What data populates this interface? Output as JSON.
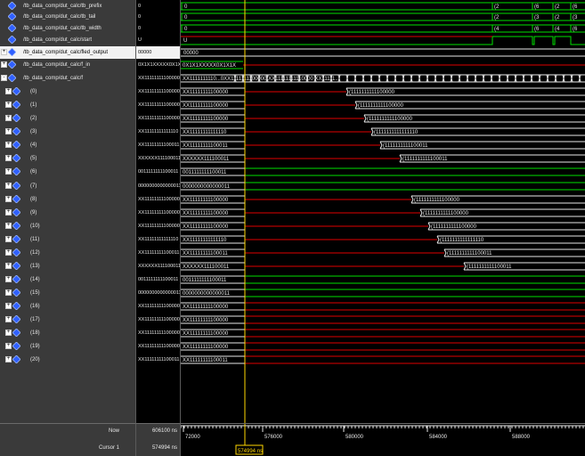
{
  "colors": {
    "name_panel_bg": "#3a3a3a",
    "wave_bg": "#000000",
    "wave_green": "#00e000",
    "wave_red": "#e00000",
    "wave_white": "#e8e8e8",
    "cursor_yellow": "#ffd700",
    "icon_blue": "#3060ff"
  },
  "signals": [
    {
      "name": "/tb_data_comp/dut_calc/tb_prefix",
      "value": "0",
      "expander": "",
      "icon": "diamond-icon"
    },
    {
      "name": "/tb_data_comp/dut_calc/tb_tail",
      "value": "0",
      "expander": "",
      "icon": "diamond-icon"
    },
    {
      "name": "/tb_data_comp/dut_calc/tb_width",
      "value": "0",
      "expander": "",
      "icon": "diamond-icon"
    },
    {
      "name": "/tb_data_comp/dut_calc/start",
      "value": "U",
      "expander": "",
      "icon": "diamond-icon"
    },
    {
      "name": "/tb_data_comp/dut_calc/fled_output",
      "value": "00000",
      "expander": "+",
      "icon": "diamond-icon",
      "selected": true
    },
    {
      "name": "/tb_data_comp/dut_calc/f_in",
      "value": "0X1X1XXXXX0X1X1",
      "expander": "+",
      "icon": "diamond-icon"
    },
    {
      "name": "/tb_data_comp/dut_calc/f",
      "value": "XX11111111100000",
      "expander": "-",
      "icon": "diamond-icon"
    },
    {
      "name": "(0)",
      "value": "XX11111111100000",
      "expander": "+",
      "icon": "diamond-icon"
    },
    {
      "name": "(1)",
      "value": "XX11111111100000",
      "expander": "+",
      "icon": "diamond-icon"
    },
    {
      "name": "(2)",
      "value": "XX11111111100000",
      "expander": "+",
      "icon": "diamond-icon"
    },
    {
      "name": "(3)",
      "value": "XX11111111111110",
      "expander": "+",
      "icon": "diamond-icon"
    },
    {
      "name": "(4)",
      "value": "XX11111111100011",
      "expander": "+",
      "icon": "diamond-icon"
    },
    {
      "name": "(5)",
      "value": "XXXXXX111100011",
      "expander": "+",
      "icon": "diamond-icon"
    },
    {
      "name": "(6)",
      "value": "0011111111100011",
      "expander": "+",
      "icon": "diamond-icon"
    },
    {
      "name": "(7)",
      "value": "0000000000000011",
      "expander": "+",
      "icon": "diamond-icon"
    },
    {
      "name": "(8)",
      "value": "XX11111111100000",
      "expander": "+",
      "icon": "diamond-icon"
    },
    {
      "name": "(9)",
      "value": "XX11111111100000",
      "expander": "+",
      "icon": "diamond-icon"
    },
    {
      "name": "(10)",
      "value": "XX11111111100000",
      "expander": "+",
      "icon": "diamond-icon"
    },
    {
      "name": "(11)",
      "value": "XX11111111111110",
      "expander": "+",
      "icon": "diamond-icon"
    },
    {
      "name": "(12)",
      "value": "XX11111111100011",
      "expander": "+",
      "icon": "diamond-icon"
    },
    {
      "name": "(13)",
      "value": "XXXXXX111100011",
      "expander": "+",
      "icon": "diamond-icon"
    },
    {
      "name": "(14)",
      "value": "0011111111100011",
      "expander": "+",
      "icon": "diamond-icon"
    },
    {
      "name": "(15)",
      "value": "0000000000000011",
      "expander": "+",
      "icon": "diamond-icon"
    },
    {
      "name": "(16)",
      "value": "XX11111111100000",
      "expander": "+",
      "icon": "diamond-icon"
    },
    {
      "name": "(17)",
      "value": "XX11111111100000",
      "expander": "+",
      "icon": "diamond-icon"
    },
    {
      "name": "(18)",
      "value": "XX11111111100000",
      "expander": "+",
      "icon": "diamond-icon"
    },
    {
      "name": "(19)",
      "value": "XX11111111100000",
      "expander": "+",
      "icon": "diamond-icon"
    },
    {
      "name": "(20)",
      "value": "XX11111111100011",
      "expander": "+",
      "icon": "diamond-icon"
    }
  ],
  "wave_labels": {
    "r0": [
      "(2",
      "(6",
      "(2",
      "(6"
    ],
    "r1": [
      "(2",
      "(3",
      "(2",
      "(3"
    ],
    "r2": [
      "(4",
      "(6",
      "(4",
      "(6"
    ],
    "r4": "00000",
    "r5": "0X1X1XXXXX0X1X1X",
    "r6": "XX1111111110...0XX1111111100000 XX11111111110000 XX11111...",
    "r6_tail": "(1111111111100000 1111111111110000 1111111111...",
    "r7": "XX11111111100000",
    "r8": "XX11111111100000",
    "r9": "XX11111111100000",
    "r10": "XX11111111111110",
    "r11": "XX11111111100011",
    "r12": "XXXXXX111100011",
    "r13": "0011111111100011",
    "r14": "0000000000000011",
    "r15": "XX11111111100000",
    "r16": "XX11111111100000",
    "r17": "XX11111111100000",
    "r18": "XX11111111111110",
    "r19": "XX11111111100011",
    "r20": "XXXXXX111100011",
    "r21": "0011111111100011",
    "r22": "0000000000000011",
    "r23": "XX11111111100000",
    "r24": "XX11111111100000",
    "r25": "XX11111111100000",
    "r26": "XX11111111100000",
    "r27": "XX11111111100011",
    "d7": "(1111111111100000",
    "d8": "(1111111111100000",
    "d9": "(1111111111100000",
    "d10": "(1111111111111110",
    "d11": "(1111111111100011",
    "d12": "(1111111111100011",
    "d15": "(1111111111100000",
    "d16": "(1111111111100000",
    "d17": "(1111111111100000",
    "d18": "(1111111111111110",
    "d19": "(1111111111100011",
    "d20": "(1111111111100011"
  },
  "bottom": {
    "now_label": "Now",
    "now_value": "606100 ns",
    "cursor_label": "Cursor 1",
    "cursor_value": "574994 ns",
    "cursor_flag": "574994 ns",
    "ruler_ticks": [
      "72000",
      "576000",
      "580000",
      "584000",
      "588000"
    ]
  }
}
